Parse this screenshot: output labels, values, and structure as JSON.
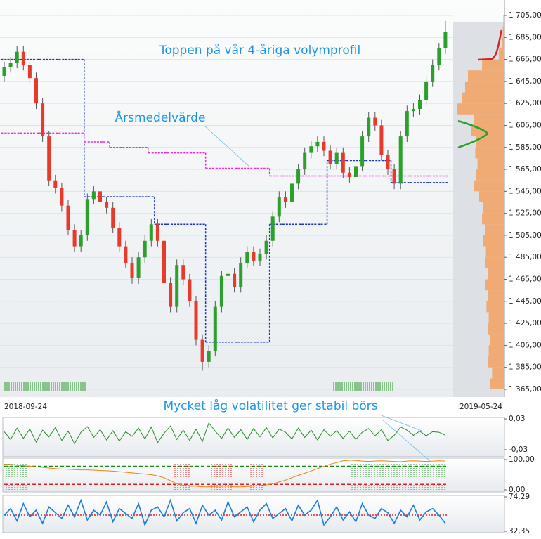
{
  "chart_data": [
    {
      "type": "candlestick",
      "annotations": [
        "Toppen på vår 4-åriga volymprofil",
        "Årsmedelvärde"
      ],
      "x_labels": [
        "2018-09-24",
        "2019-05-24"
      ],
      "up_color": "#2ca02c",
      "down_color": "#e8392b",
      "open": [
        1650,
        1658,
        1662,
        1672,
        1660,
        1648,
        1625,
        1595,
        1555,
        1548,
        1532,
        1510,
        1495,
        1505,
        1538,
        1545,
        1535,
        1530,
        1512,
        1495,
        1480,
        1466,
        1485,
        1500,
        1515,
        1500,
        1462,
        1440,
        1478,
        1465,
        1445,
        1410,
        1390,
        1400,
        1440,
        1468,
        1470,
        1458,
        1480,
        1490,
        1482,
        1488,
        1500,
        1522,
        1540,
        1535,
        1552,
        1565,
        1580,
        1586,
        1590,
        1582,
        1570,
        1580,
        1562,
        1558,
        1568,
        1595,
        1612,
        1605,
        1578,
        1565,
        1552,
        1595,
        1618,
        1620,
        1628,
        1645,
        1660,
        1675
      ],
      "high": [
        1663,
        1667,
        1677,
        1677,
        1665,
        1653,
        1630,
        1600,
        1560,
        1553,
        1537,
        1515,
        1510,
        1543,
        1550,
        1550,
        1540,
        1535,
        1517,
        1500,
        1485,
        1490,
        1505,
        1520,
        1520,
        1505,
        1467,
        1483,
        1483,
        1470,
        1450,
        1415,
        1405,
        1445,
        1473,
        1475,
        1475,
        1485,
        1495,
        1495,
        1493,
        1505,
        1527,
        1545,
        1545,
        1557,
        1570,
        1585,
        1591,
        1595,
        1595,
        1587,
        1585,
        1585,
        1567,
        1573,
        1600,
        1617,
        1617,
        1610,
        1583,
        1570,
        1600,
        1623,
        1625,
        1633,
        1650,
        1665,
        1680,
        1700
      ],
      "low": [
        1645,
        1653,
        1657,
        1655,
        1643,
        1620,
        1590,
        1550,
        1543,
        1527,
        1505,
        1490,
        1490,
        1500,
        1533,
        1530,
        1525,
        1507,
        1490,
        1475,
        1461,
        1461,
        1480,
        1495,
        1495,
        1457,
        1435,
        1435,
        1460,
        1440,
        1405,
        1382,
        1385,
        1395,
        1435,
        1463,
        1453,
        1453,
        1475,
        1477,
        1477,
        1483,
        1495,
        1517,
        1530,
        1530,
        1547,
        1560,
        1575,
        1581,
        1577,
        1565,
        1565,
        1557,
        1553,
        1553,
        1563,
        1590,
        1600,
        1573,
        1560,
        1547,
        1547,
        1590,
        1613,
        1615,
        1623,
        1640,
        1655,
        1670
      ],
      "close": [
        1658,
        1662,
        1672,
        1660,
        1648,
        1625,
        1595,
        1555,
        1548,
        1532,
        1510,
        1495,
        1505,
        1538,
        1545,
        1535,
        1530,
        1512,
        1495,
        1480,
        1466,
        1485,
        1500,
        1515,
        1500,
        1462,
        1440,
        1478,
        1465,
        1445,
        1410,
        1390,
        1400,
        1440,
        1468,
        1470,
        1458,
        1480,
        1490,
        1482,
        1488,
        1500,
        1522,
        1540,
        1535,
        1552,
        1565,
        1580,
        1586,
        1590,
        1582,
        1570,
        1580,
        1562,
        1558,
        1568,
        1595,
        1612,
        1605,
        1578,
        1565,
        1552,
        1595,
        1618,
        1620,
        1628,
        1645,
        1660,
        1675,
        1690
      ],
      "lines": [
        {
          "color": "#1a2fd0",
          "values": [
            1665,
            1665,
            1665,
            1665,
            1665,
            1665,
            1665,
            1665,
            1665,
            1665,
            1665,
            1665,
            1665,
            1540,
            1540,
            1540,
            1540,
            1540,
            1540,
            1540,
            1540,
            1540,
            1540,
            1540,
            1515,
            1515,
            1515,
            1515,
            1515,
            1515,
            1515,
            1515,
            1408,
            1408,
            1408,
            1408,
            1408,
            1408,
            1408,
            1408,
            1408,
            1408,
            1515,
            1515,
            1515,
            1515,
            1515,
            1515,
            1515,
            1515,
            1515,
            1573,
            1573,
            1573,
            1573,
            1573,
            1573,
            1573,
            1573,
            1573,
            1573,
            1553,
            1553,
            1553,
            1553,
            1553,
            1553,
            1553,
            1553,
            1553
          ]
        },
        {
          "color": "#e82ad8",
          "values": [
            1598,
            1598,
            1598,
            1598,
            1598,
            1598,
            1598,
            1598,
            1598,
            1598,
            1598,
            1598,
            1598,
            1590,
            1590,
            1590,
            1590,
            1585,
            1585,
            1585,
            1585,
            1585,
            1585,
            1580,
            1580,
            1580,
            1580,
            1580,
            1580,
            1580,
            1580,
            1580,
            1566,
            1566,
            1566,
            1566,
            1566,
            1566,
            1566,
            1566,
            1566,
            1566,
            1559,
            1559,
            1559,
            1559,
            1559,
            1559,
            1559,
            1559,
            1559,
            1559,
            1559,
            1559,
            1559,
            1559,
            1559,
            1559,
            1559,
            1559,
            1559,
            1559,
            1559,
            1559,
            1559,
            1559,
            1559,
            1559,
            1559,
            1559
          ]
        }
      ],
      "volume_profile": {
        "color": "#f3a060",
        "prices": [
          1370,
          1380,
          1390,
          1400,
          1410,
          1420,
          1430,
          1440,
          1450,
          1460,
          1470,
          1480,
          1490,
          1500,
          1510,
          1520,
          1530,
          1540,
          1550,
          1560,
          1570,
          1580,
          1590,
          1600,
          1610,
          1620,
          1630,
          1640,
          1650,
          1660,
          1670,
          1680,
          1690,
          1700
        ],
        "values": [
          25,
          22,
          30,
          28,
          26,
          30,
          28,
          32,
          30,
          34,
          30,
          35,
          33,
          38,
          35,
          40,
          38,
          45,
          55,
          50,
          48,
          52,
          50,
          60,
          55,
          85,
          75,
          70,
          65,
          40,
          10,
          5,
          3,
          2
        ]
      },
      "ylim": [
        1365,
        1705
      ],
      "yticks": [
        {
          "value": 1365,
          "label": "1 365,00"
        },
        {
          "value": 1385,
          "label": "1 385,00"
        },
        {
          "value": 1405,
          "label": "1 405,00"
        },
        {
          "value": 1425,
          "label": "1 425,00"
        },
        {
          "value": 1445,
          "label": "1 445,00"
        },
        {
          "value": 1465,
          "label": "1 465,00"
        },
        {
          "value": 1485,
          "label": "1 485,00"
        },
        {
          "value": 1505,
          "label": "1 505,00"
        },
        {
          "value": 1525,
          "label": "1 525,00"
        },
        {
          "value": 1545,
          "label": "1 545,00"
        },
        {
          "value": 1565,
          "label": "1 565,00"
        },
        {
          "value": 1585,
          "label": "1 585,00"
        },
        {
          "value": 1605,
          "label": "1 605,00"
        },
        {
          "value": 1625,
          "label": "1 625,00"
        },
        {
          "value": 1645,
          "label": "1 645,00"
        },
        {
          "value": 1665,
          "label": "1 665,00"
        },
        {
          "value": 1685,
          "label": "1 685,00"
        },
        {
          "value": 1705,
          "label": "1 705,00"
        }
      ],
      "grid": true
    },
    {
      "type": "line",
      "annotation": "Mycket låg volatilitet ger stabil börs",
      "series": [
        {
          "color": "#2a8a2a",
          "values": [
            0.005,
            -0.01,
            0.012,
            -0.008,
            0.01,
            -0.015,
            0.008,
            -0.005,
            0.013,
            -0.012,
            0.006,
            -0.018,
            0.004,
            0.015,
            -0.006,
            0.009,
            -0.011,
            0.007,
            -0.013,
            0.005,
            -0.004,
            0.012,
            -0.009,
            0.014,
            -0.016,
            0.002,
            0.016,
            -0.01,
            0.008,
            -0.012,
            0.01,
            -0.014,
            0.022,
            0.006,
            -0.008,
            0.012,
            -0.006,
            0.009,
            -0.01,
            0.011,
            -0.005,
            0.013,
            -0.007,
            0.01,
            0.004,
            -0.009,
            0.012,
            -0.006,
            0.008,
            -0.011,
            0.009,
            -0.004,
            0.007,
            -0.008,
            0.006,
            -0.01,
            0.004,
            0.011,
            -0.003,
            0.009,
            -0.012,
            -0.002,
            0.014,
            0.008,
            -0.002,
            0.006,
            -0.003,
            0.005,
            0.004,
            -0.002
          ]
        }
      ],
      "ylim": [
        -0.03,
        0.03
      ],
      "yticks": [
        {
          "value": 0.03,
          "label": "0,03"
        },
        {
          "value": -0.03,
          "label": "-0,03"
        }
      ]
    },
    {
      "type": "line",
      "series": [
        {
          "color": "#f08010",
          "values": [
            85,
            84,
            82,
            80,
            78,
            76,
            74,
            72,
            70,
            69,
            68,
            67,
            66,
            66,
            65,
            64,
            63,
            62,
            60,
            58,
            56,
            54,
            52,
            50,
            46,
            40,
            30,
            20,
            15,
            12,
            12,
            10,
            10,
            11,
            12,
            12,
            10,
            10,
            11,
            12,
            14,
            16,
            20,
            26,
            32,
            40,
            48,
            55,
            62,
            70,
            78,
            85,
            90,
            96,
            98,
            97,
            95,
            94,
            95,
            96,
            95,
            94,
            93,
            95,
            96,
            95,
            94,
            95,
            96,
            95
          ]
        }
      ],
      "levels": [
        {
          "value": 78,
          "color": "#1a8a1a"
        },
        {
          "value": 18,
          "color": "#e02020"
        }
      ],
      "ylim": [
        0,
        100
      ],
      "yticks": [
        {
          "value": 100,
          "label": "100,00"
        },
        {
          "value": 0,
          "label": "0,00"
        }
      ]
    },
    {
      "type": "line",
      "series": [
        {
          "color": "#1a7ee0",
          "values": [
            52,
            60,
            45,
            66,
            50,
            58,
            42,
            62,
            55,
            48,
            64,
            50,
            70,
            46,
            58,
            52,
            68,
            44,
            60,
            54,
            48,
            66,
            40,
            58,
            62,
            50,
            70,
            45,
            55,
            60,
            42,
            64,
            52,
            58,
            46,
            68,
            50,
            56,
            62,
            44,
            58,
            66,
            48,
            54,
            60,
            45,
            64,
            52,
            58,
            70,
            40,
            50,
            62,
            46,
            56,
            44,
            66,
            52,
            48,
            60,
            55,
            42,
            58,
            50,
            64,
            46,
            56,
            60,
            52,
            42
          ]
        }
      ],
      "levels": [
        {
          "value": 52,
          "color": "#e02020"
        }
      ],
      "ylim": [
        32.35,
        74.29
      ],
      "yticks": [
        {
          "value": 74.29,
          "label": "74,29"
        },
        {
          "value": 32.35,
          "label": "32,35"
        }
      ]
    }
  ]
}
